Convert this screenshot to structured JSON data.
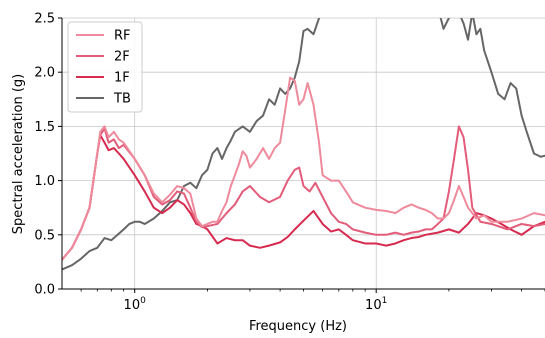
{
  "chart_data": {
    "type": "line",
    "title": "",
    "xlabel": "Frequency (Hz)",
    "ylabel": "Spectral acceleration (g)",
    "xscale": "log",
    "xlim": [
      0.5,
      50
    ],
    "ylim": [
      0,
      2.5
    ],
    "grid": true,
    "legend_position": "top-left",
    "xticks": [
      {
        "value": 1,
        "label": "10",
        "exp": "0"
      },
      {
        "value": 10,
        "label": "10",
        "exp": "1"
      }
    ],
    "yticks": [
      {
        "value": 0.0,
        "label": "0.0"
      },
      {
        "value": 0.5,
        "label": "0.5"
      },
      {
        "value": 1.0,
        "label": "1.0"
      },
      {
        "value": 1.5,
        "label": "1.5"
      },
      {
        "value": 2.0,
        "label": "2.0"
      },
      {
        "value": 2.5,
        "label": "2.5"
      }
    ],
    "series": [
      {
        "name": "RF",
        "color": "#ee8a9b",
        "x": [
          0.5,
          0.55,
          0.6,
          0.65,
          0.7,
          0.72,
          0.75,
          0.78,
          0.82,
          0.86,
          0.9,
          1.0,
          1.1,
          1.2,
          1.3,
          1.4,
          1.5,
          1.6,
          1.7,
          1.8,
          1.9,
          2.0,
          2.1,
          2.2,
          2.3,
          2.4,
          2.5,
          2.6,
          2.7,
          2.8,
          2.9,
          3.0,
          3.2,
          3.4,
          3.6,
          3.8,
          4.0,
          4.2,
          4.4,
          4.6,
          4.8,
          5.0,
          5.2,
          5.5,
          5.8,
          6.0,
          6.5,
          7.0,
          7.5,
          8.0,
          9.0,
          10.0,
          11.0,
          12.0,
          13.0,
          14.0,
          15.0,
          16.0,
          17.0,
          18.0,
          19.0,
          20.0,
          21.0,
          22.0,
          23.0,
          24.0,
          26.0,
          28.0,
          30.0,
          35.0,
          40.0,
          45.0,
          50.0
        ],
        "y": [
          0.27,
          0.38,
          0.55,
          0.75,
          1.25,
          1.45,
          1.5,
          1.4,
          1.45,
          1.38,
          1.35,
          1.2,
          1.05,
          0.88,
          0.8,
          0.87,
          0.95,
          0.93,
          0.88,
          0.65,
          0.58,
          0.6,
          0.62,
          0.62,
          0.72,
          0.8,
          0.95,
          1.05,
          1.15,
          1.27,
          1.23,
          1.12,
          1.2,
          1.3,
          1.2,
          1.3,
          1.35,
          1.65,
          1.95,
          1.92,
          1.7,
          1.75,
          1.9,
          1.7,
          1.35,
          1.05,
          1.0,
          1.0,
          0.9,
          0.8,
          0.75,
          0.73,
          0.72,
          0.7,
          0.75,
          0.78,
          0.75,
          0.73,
          0.7,
          0.65,
          0.65,
          0.7,
          0.82,
          0.95,
          0.85,
          0.75,
          0.65,
          0.68,
          0.62,
          0.62,
          0.65,
          0.7,
          0.68
        ]
      },
      {
        "name": "2F",
        "color": "#e35c7a",
        "x": [
          0.5,
          0.55,
          0.6,
          0.65,
          0.7,
          0.72,
          0.75,
          0.78,
          0.82,
          0.86,
          0.9,
          1.0,
          1.1,
          1.2,
          1.3,
          1.4,
          1.5,
          1.6,
          1.7,
          1.8,
          1.9,
          2.0,
          2.2,
          2.4,
          2.6,
          2.8,
          3.0,
          3.3,
          3.6,
          4.0,
          4.3,
          4.6,
          4.8,
          5.0,
          5.3,
          5.6,
          6.0,
          6.5,
          7.0,
          7.5,
          8.0,
          9.0,
          10.0,
          11.0,
          12.0,
          13.0,
          14.0,
          15.0,
          16.0,
          17.0,
          18.0,
          19.0,
          20.0,
          21.0,
          22.0,
          23.0,
          24.0,
          25.0,
          27.0,
          30.0,
          35.0,
          40.0,
          45.0,
          50.0
        ],
        "y": [
          0.27,
          0.38,
          0.55,
          0.75,
          1.25,
          1.42,
          1.48,
          1.35,
          1.38,
          1.3,
          1.33,
          1.2,
          1.05,
          0.85,
          0.78,
          0.82,
          0.9,
          0.88,
          0.75,
          0.62,
          0.57,
          0.58,
          0.6,
          0.7,
          0.78,
          0.9,
          0.95,
          0.85,
          0.8,
          0.85,
          1.0,
          1.1,
          1.12,
          0.95,
          0.9,
          0.98,
          0.85,
          0.7,
          0.62,
          0.6,
          0.55,
          0.52,
          0.5,
          0.5,
          0.52,
          0.5,
          0.52,
          0.53,
          0.55,
          0.55,
          0.6,
          0.65,
          0.9,
          1.2,
          1.5,
          1.4,
          1.1,
          0.75,
          0.62,
          0.6,
          0.55,
          0.6,
          0.58,
          0.6
        ]
      },
      {
        "name": "1F",
        "color": "#d62a4e",
        "x": [
          0.5,
          0.55,
          0.6,
          0.65,
          0.7,
          0.72,
          0.75,
          0.78,
          0.82,
          0.86,
          0.9,
          1.0,
          1.1,
          1.2,
          1.3,
          1.4,
          1.5,
          1.6,
          1.7,
          1.8,
          1.9,
          2.0,
          2.2,
          2.4,
          2.6,
          2.8,
          3.0,
          3.3,
          3.6,
          4.0,
          4.3,
          4.6,
          5.0,
          5.5,
          6.0,
          6.5,
          7.0,
          7.5,
          8.0,
          9.0,
          10.0,
          11.0,
          12.0,
          13.0,
          14.0,
          15.0,
          16.0,
          18.0,
          20.0,
          22.0,
          24.0,
          26.0,
          28.0,
          30.0,
          33.0,
          36.0,
          40.0,
          45.0,
          50.0
        ],
        "y": [
          0.27,
          0.38,
          0.55,
          0.75,
          1.25,
          1.42,
          1.35,
          1.28,
          1.3,
          1.25,
          1.2,
          1.05,
          0.9,
          0.75,
          0.7,
          0.75,
          0.82,
          0.78,
          0.7,
          0.6,
          0.58,
          0.55,
          0.42,
          0.47,
          0.45,
          0.45,
          0.4,
          0.38,
          0.4,
          0.43,
          0.48,
          0.55,
          0.63,
          0.72,
          0.6,
          0.53,
          0.55,
          0.5,
          0.45,
          0.42,
          0.42,
          0.4,
          0.42,
          0.45,
          0.47,
          0.48,
          0.5,
          0.52,
          0.55,
          0.52,
          0.6,
          0.7,
          0.68,
          0.65,
          0.6,
          0.55,
          0.5,
          0.58,
          0.62
        ]
      },
      {
        "name": "TB",
        "color": "#666666",
        "x": [
          0.5,
          0.55,
          0.6,
          0.65,
          0.7,
          0.75,
          0.8,
          0.85,
          0.9,
          0.95,
          1.0,
          1.05,
          1.1,
          1.2,
          1.3,
          1.4,
          1.5,
          1.6,
          1.7,
          1.8,
          1.9,
          2.0,
          2.1,
          2.2,
          2.3,
          2.4,
          2.5,
          2.6,
          2.8,
          3.0,
          3.2,
          3.4,
          3.6,
          3.8,
          4.0,
          4.2,
          4.4,
          4.6,
          4.8,
          5.0,
          5.2,
          5.5,
          5.8,
          6.0,
          18.0,
          19.0,
          20.0,
          21.0,
          22.0,
          23.0,
          24.0,
          25.0,
          26.0,
          27.0,
          28.0,
          30.0,
          32.0,
          34.0,
          36.0,
          38.0,
          40.0,
          42.0,
          45.0,
          48.0,
          50.0
        ],
        "y": [
          0.18,
          0.22,
          0.28,
          0.35,
          0.38,
          0.47,
          0.45,
          0.5,
          0.55,
          0.6,
          0.62,
          0.62,
          0.6,
          0.65,
          0.72,
          0.8,
          0.82,
          0.95,
          0.98,
          0.93,
          1.05,
          1.1,
          1.25,
          1.3,
          1.2,
          1.3,
          1.37,
          1.45,
          1.5,
          1.45,
          1.55,
          1.6,
          1.75,
          1.7,
          1.85,
          1.8,
          1.85,
          1.95,
          2.1,
          2.38,
          2.4,
          2.35,
          2.5,
          2.6,
          2.6,
          2.4,
          2.5,
          2.7,
          2.55,
          2.45,
          2.3,
          2.55,
          2.35,
          2.4,
          2.2,
          2.0,
          1.8,
          1.75,
          1.9,
          1.85,
          1.6,
          1.45,
          1.25,
          1.22,
          1.23
        ]
      }
    ]
  }
}
